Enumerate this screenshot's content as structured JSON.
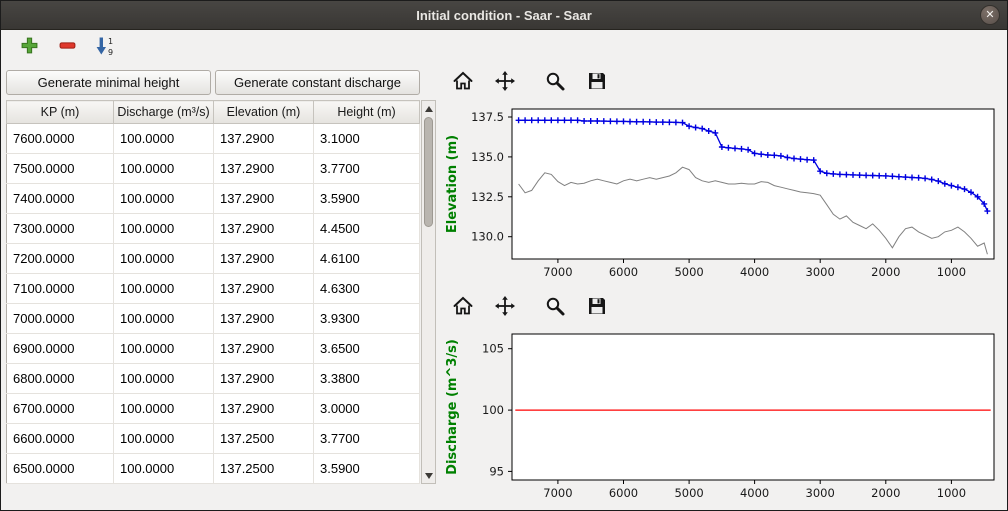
{
  "window": {
    "title": "Initial condition - Saar - Saar",
    "close_glyph": "✕"
  },
  "toolbar": {
    "icons": [
      {
        "name": "add-row-icon"
      },
      {
        "name": "remove-row-icon"
      },
      {
        "name": "sort-rows-icon",
        "top_digit": "1",
        "bottom_digit": "9"
      }
    ]
  },
  "left_panel": {
    "buttons": [
      {
        "label": "Generate minimal height"
      },
      {
        "label": "Generate constant discharge"
      }
    ],
    "table": {
      "columns": [
        "KP (m)",
        "Discharge (m³/s)",
        "Elevation (m)",
        "Height (m)"
      ],
      "rows": [
        [
          "7600.0000",
          "100.0000",
          "137.2900",
          "3.1000"
        ],
        [
          "7500.0000",
          "100.0000",
          "137.2900",
          "3.7700"
        ],
        [
          "7400.0000",
          "100.0000",
          "137.2900",
          "3.5900"
        ],
        [
          "7300.0000",
          "100.0000",
          "137.2900",
          "4.4500"
        ],
        [
          "7200.0000",
          "100.0000",
          "137.2900",
          "4.6100"
        ],
        [
          "7100.0000",
          "100.0000",
          "137.2900",
          "4.6300"
        ],
        [
          "7000.0000",
          "100.0000",
          "137.2900",
          "3.9300"
        ],
        [
          "6900.0000",
          "100.0000",
          "137.2900",
          "3.6500"
        ],
        [
          "6800.0000",
          "100.0000",
          "137.2900",
          "3.3800"
        ],
        [
          "6700.0000",
          "100.0000",
          "137.2900",
          "3.0000"
        ],
        [
          "6600.0000",
          "100.0000",
          "137.2500",
          "3.7700"
        ],
        [
          "6500.0000",
          "100.0000",
          "137.2500",
          "3.5900"
        ]
      ]
    }
  },
  "chart_toolbar_icons": [
    "home-icon",
    "pan-icon",
    "zoom-icon",
    "save-icon"
  ],
  "colors": {
    "axis_label_green": "#008000",
    "water_line_blue": "#0000e0",
    "bed_line_gray": "#808080",
    "discharge_line_red": "#ff0000"
  },
  "chart_data": [
    {
      "type": "line",
      "ylabel": "Elevation (m)",
      "ylabel_color": "#008000",
      "x_axis_inverted": true,
      "grid": false,
      "xlim": [
        7700,
        350
      ],
      "ylim": [
        128.6,
        138.0
      ],
      "xticks": [
        7000,
        6000,
        5000,
        4000,
        3000,
        2000,
        1000
      ],
      "xtick_labels": [
        "7000",
        "6000",
        "5000",
        "4000",
        "3000",
        "2000",
        "1000"
      ],
      "yticks": [
        130.0,
        132.5,
        135.0,
        137.5
      ],
      "ytick_labels": [
        "130.0",
        "132.5",
        "135.0",
        "137.5"
      ],
      "series": [
        {
          "name": "water surface elevation",
          "color": "#0000e0",
          "marker": "+",
          "width": 1.3,
          "x": [
            7600,
            7500,
            7400,
            7300,
            7200,
            7100,
            7000,
            6900,
            6800,
            6700,
            6600,
            6500,
            6400,
            6300,
            6200,
            6100,
            6000,
            5900,
            5800,
            5700,
            5600,
            5500,
            5400,
            5300,
            5200,
            5100,
            5000,
            4900,
            4800,
            4700,
            4600,
            4500,
            4400,
            4300,
            4200,
            4100,
            4000,
            3900,
            3800,
            3700,
            3600,
            3500,
            3400,
            3300,
            3200,
            3100,
            3000,
            2900,
            2800,
            2700,
            2600,
            2500,
            2400,
            2300,
            2200,
            2100,
            2000,
            1900,
            1800,
            1700,
            1600,
            1500,
            1400,
            1300,
            1200,
            1100,
            1000,
            900,
            800,
            700,
            600,
            500,
            450
          ],
          "y": [
            137.29,
            137.29,
            137.29,
            137.29,
            137.29,
            137.29,
            137.29,
            137.29,
            137.29,
            137.29,
            137.25,
            137.25,
            137.25,
            137.24,
            137.23,
            137.22,
            137.22,
            137.21,
            137.2,
            137.2,
            137.19,
            137.18,
            137.18,
            137.17,
            137.16,
            137.15,
            136.92,
            136.84,
            136.77,
            136.62,
            136.5,
            135.62,
            135.57,
            135.53,
            135.5,
            135.45,
            135.22,
            135.17,
            135.12,
            135.1,
            135.06,
            134.96,
            134.9,
            134.86,
            134.82,
            134.8,
            134.1,
            133.97,
            133.93,
            133.9,
            133.89,
            133.87,
            133.86,
            133.84,
            133.83,
            133.82,
            133.81,
            133.78,
            133.76,
            133.73,
            133.71,
            133.69,
            133.65,
            133.58,
            133.48,
            133.32,
            133.2,
            133.1,
            132.98,
            132.78,
            132.5,
            132.05,
            131.6
          ]
        },
        {
          "name": "bed elevation",
          "color": "#808080",
          "marker": "",
          "width": 1,
          "x": [
            7600,
            7500,
            7400,
            7300,
            7200,
            7100,
            7000,
            6900,
            6800,
            6700,
            6600,
            6500,
            6400,
            6300,
            6200,
            6100,
            6000,
            5900,
            5800,
            5700,
            5600,
            5500,
            5400,
            5300,
            5200,
            5100,
            5000,
            4900,
            4800,
            4700,
            4600,
            4500,
            4400,
            4300,
            4200,
            4100,
            4000,
            3900,
            3800,
            3700,
            3600,
            3500,
            3400,
            3300,
            3200,
            3100,
            3000,
            2900,
            2800,
            2700,
            2600,
            2500,
            2400,
            2300,
            2200,
            2100,
            2000,
            1900,
            1800,
            1700,
            1600,
            1500,
            1400,
            1300,
            1200,
            1100,
            1000,
            900,
            800,
            700,
            600,
            500,
            450
          ],
          "y": [
            133.3,
            132.75,
            132.9,
            133.5,
            134.0,
            133.9,
            133.45,
            133.2,
            133.4,
            133.3,
            133.35,
            133.5,
            133.6,
            133.5,
            133.4,
            133.3,
            133.5,
            133.6,
            133.5,
            133.6,
            133.7,
            133.6,
            133.7,
            133.8,
            134.0,
            134.35,
            134.2,
            133.7,
            133.5,
            133.4,
            133.5,
            133.4,
            133.3,
            133.3,
            133.35,
            133.3,
            133.3,
            133.45,
            133.4,
            133.2,
            133.1,
            133.0,
            132.9,
            132.8,
            132.75,
            132.7,
            132.6,
            132.0,
            131.4,
            131.1,
            131.3,
            130.9,
            130.7,
            130.5,
            130.8,
            130.4,
            129.9,
            129.3,
            130.0,
            130.5,
            130.6,
            130.3,
            130.1,
            129.9,
            130.0,
            130.3,
            130.4,
            130.6,
            130.3,
            129.9,
            129.4,
            129.6,
            128.9
          ]
        }
      ]
    },
    {
      "type": "line",
      "ylabel": "Discharge (m^3/s)",
      "ylabel_color": "#008000",
      "x_axis_inverted": true,
      "grid": false,
      "xlim": [
        7700,
        350
      ],
      "ylim": [
        94.3,
        106.2
      ],
      "xticks": [
        7000,
        6000,
        5000,
        4000,
        3000,
        2000,
        1000
      ],
      "xtick_labels": [
        "7000",
        "6000",
        "5000",
        "4000",
        "3000",
        "2000",
        "1000"
      ],
      "yticks": [
        95,
        100,
        105
      ],
      "ytick_labels": [
        "95",
        "100",
        "105"
      ],
      "series": [
        {
          "name": "discharge",
          "color": "#ff0000",
          "marker": "",
          "width": 1.3,
          "x": [
            7650,
            400
          ],
          "y": [
            100,
            100
          ]
        }
      ]
    }
  ]
}
